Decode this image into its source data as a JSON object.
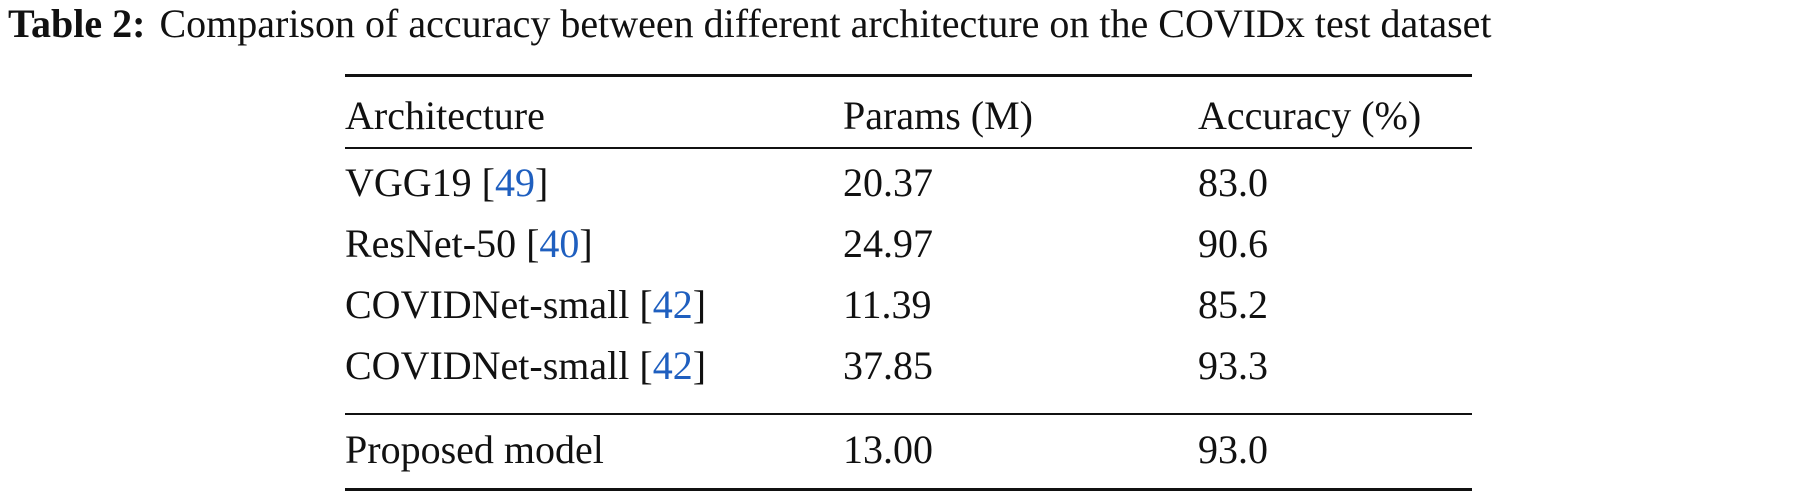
{
  "caption": {
    "label": "Table 2:",
    "text": "Comparison of accuracy between different architecture on the COVIDx test dataset"
  },
  "table": {
    "headers": [
      "Architecture",
      "Params (M)",
      "Accuracy (%)"
    ],
    "rows": [
      {
        "name": "VGG19",
        "cite": "49",
        "params": "20.37",
        "accuracy": "83.0"
      },
      {
        "name": "ResNet-50",
        "cite": "40",
        "params": "24.97",
        "accuracy": "90.6"
      },
      {
        "name": "COVIDNet-small",
        "cite": "42",
        "params": "11.39",
        "accuracy": "85.2"
      },
      {
        "name": "COVIDNet-small",
        "cite": "42",
        "params": "37.85",
        "accuracy": "93.3"
      }
    ],
    "final_row": {
      "name": "Proposed model",
      "params": "13.00",
      "accuracy": "93.0"
    }
  },
  "colors": {
    "citation_link": "#1f5fbf",
    "text": "#111111"
  }
}
